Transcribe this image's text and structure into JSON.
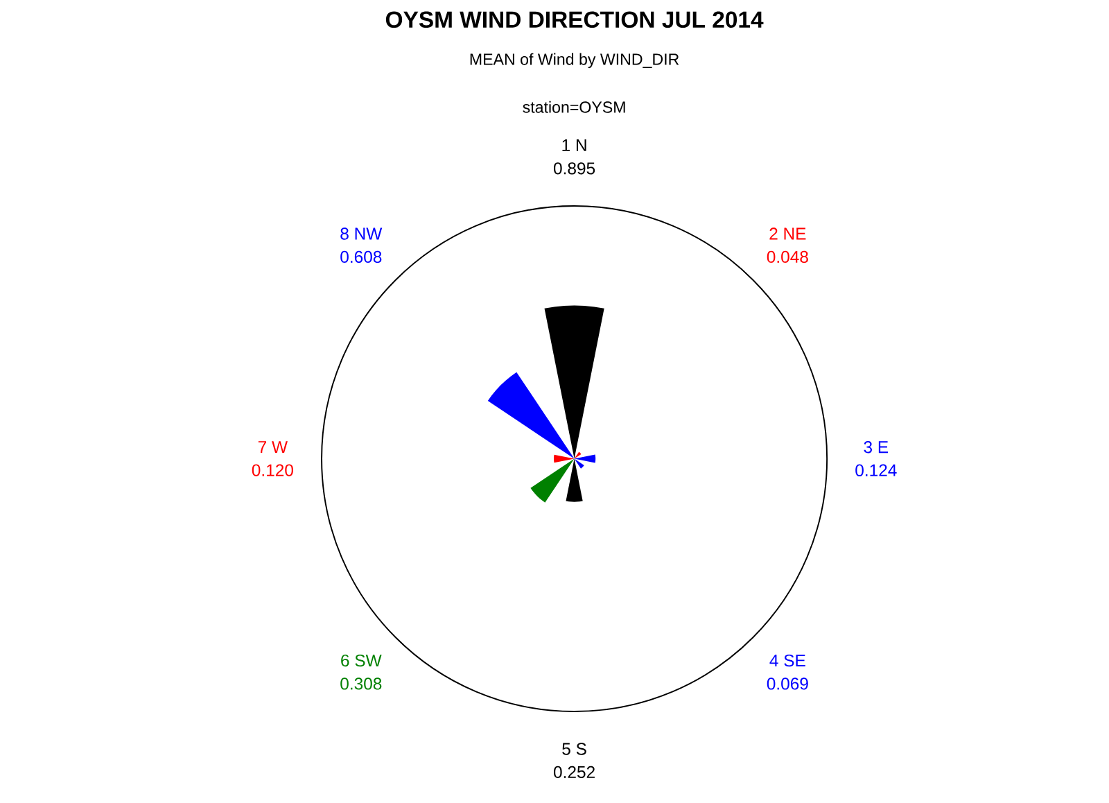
{
  "chart_data": {
    "type": "other",
    "title": "OYSM WIND DIRECTION JUL 2014",
    "subtitle": "MEAN of Wind by WIND_DIR",
    "annotations": [
      "station=OYSM"
    ],
    "categories": [
      "1 N",
      "2 NE",
      "3 E",
      "4 SE",
      "5 S",
      "6 SW",
      "7 W",
      "8 NW"
    ],
    "values": [
      0.895,
      0.048,
      0.124,
      0.069,
      0.252,
      0.308,
      0.12,
      0.608
    ],
    "value_labels": [
      "0.895",
      "0.048",
      "0.124",
      "0.069",
      "0.252",
      "0.308",
      "0.120",
      "0.608"
    ],
    "colors": [
      "#000000",
      "#ff0000",
      "#0000ff",
      "#0000ff",
      "#000000",
      "#008000",
      "#ff0000",
      "#0000ff"
    ]
  }
}
